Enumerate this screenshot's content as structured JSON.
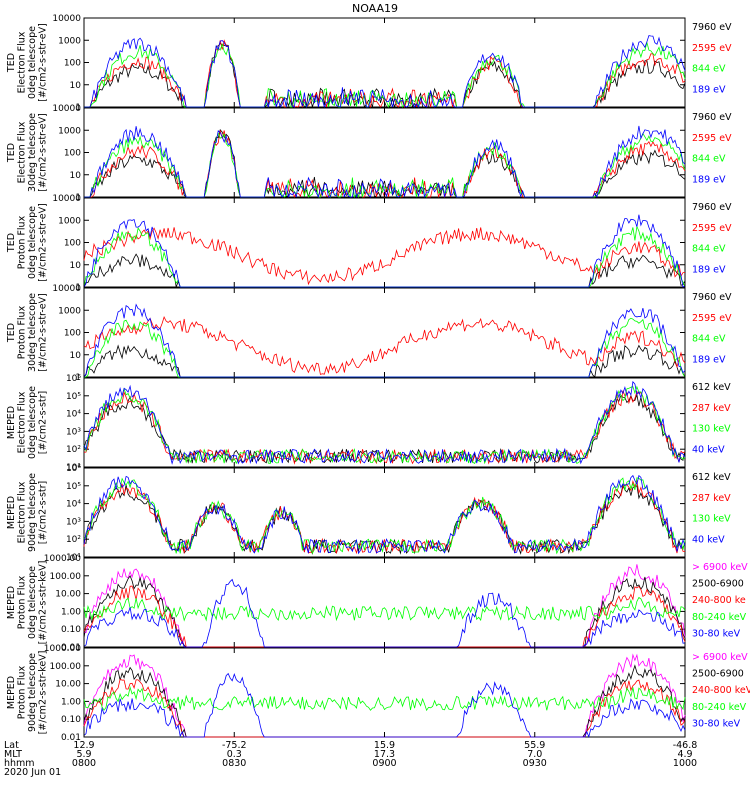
{
  "title": "NOAA19",
  "colors": {
    "black": "#000000",
    "red": "#ff0000",
    "green": "#00ff00",
    "blue": "#0000ff",
    "magenta": "#ff00ff",
    "frame": "#000000"
  },
  "chart_data": [
    {
      "type": "line",
      "ylabel": [
        "TED",
        "Electron Flux",
        "0deg telescope",
        "[#/cm2-s-str-eV]"
      ],
      "scale": "log",
      "yticks": [
        "10000",
        "1000",
        "100",
        "10",
        "1"
      ],
      "series": [
        {
          "name": "7960 eV",
          "color": "black"
        },
        {
          "name": "2595 eV",
          "color": "red"
        },
        {
          "name": "844 eV",
          "color": "green"
        },
        {
          "name": "189 eV",
          "color": "blue"
        }
      ]
    },
    {
      "type": "line",
      "ylabel": [
        "TED",
        "Electron Flux",
        "30deg telescope",
        "[#/cm2-s-str-eV]"
      ],
      "scale": "log",
      "yticks": [
        "10000",
        "1000",
        "100",
        "10",
        "1"
      ],
      "series": [
        {
          "name": "7960 eV",
          "color": "black"
        },
        {
          "name": "2595 eV",
          "color": "red"
        },
        {
          "name": "844 eV",
          "color": "green"
        },
        {
          "name": "189 eV",
          "color": "blue"
        }
      ]
    },
    {
      "type": "line",
      "ylabel": [
        "TED",
        "Proton Flux",
        "0deg telescope",
        "[#/cm2-s-str-eV]"
      ],
      "scale": "log",
      "yticks": [
        "10000",
        "1000",
        "100",
        "10",
        "1"
      ],
      "series": [
        {
          "name": "7960 eV",
          "color": "black"
        },
        {
          "name": "2595 eV",
          "color": "red"
        },
        {
          "name": "844 eV",
          "color": "green"
        },
        {
          "name": "189 eV",
          "color": "blue"
        }
      ]
    },
    {
      "type": "line",
      "ylabel": [
        "TED",
        "Proton Flux",
        "30deg telescope",
        "[#/cm2-s-str-eV]"
      ],
      "scale": "log",
      "yticks": [
        "10000",
        "1000",
        "100",
        "10",
        "1"
      ],
      "series": [
        {
          "name": "7960 eV",
          "color": "black"
        },
        {
          "name": "2595 eV",
          "color": "red"
        },
        {
          "name": "844 eV",
          "color": "green"
        },
        {
          "name": "189 eV",
          "color": "blue"
        }
      ]
    },
    {
      "type": "line",
      "ylabel": [
        "MEPED",
        "Electron Flux",
        "0deg telescope",
        "[#/cm2-s-str]"
      ],
      "scale": "log",
      "yticks": [
        "10⁶",
        "10⁵",
        "10⁴",
        "10³",
        "10²",
        "10¹"
      ],
      "series": [
        {
          "name": "612 keV",
          "color": "black"
        },
        {
          "name": "287 keV",
          "color": "red"
        },
        {
          "name": "130 keV",
          "color": "green"
        },
        {
          "name": "40 keV",
          "color": "blue"
        }
      ]
    },
    {
      "type": "line",
      "ylabel": [
        "MEPED",
        "Electron Flux",
        "90deg telescope",
        "[#/cm2-s-str]"
      ],
      "scale": "log",
      "yticks": [
        "10⁶",
        "10⁵",
        "10⁴",
        "10³",
        "10²",
        "10¹"
      ],
      "series": [
        {
          "name": "612 keV",
          "color": "black"
        },
        {
          "name": "287 keV",
          "color": "red"
        },
        {
          "name": "130 keV",
          "color": "green"
        },
        {
          "name": "40 keV",
          "color": "blue"
        }
      ]
    },
    {
      "type": "line",
      "ylabel": [
        "MEPED",
        "Proton Flux",
        "0deg telescope",
        "[#/cm2-s-str-keV]"
      ],
      "scale": "log",
      "yticks": [
        "1000.00",
        "100.00",
        "10.00",
        "1.00",
        "0.10",
        "0.01"
      ],
      "series": [
        {
          "name": "> 6900 keV",
          "color": "magenta"
        },
        {
          "name": "2500-6900",
          "color": "black"
        },
        {
          "name": "240-800 ke",
          "color": "red"
        },
        {
          "name": "80-240 keV",
          "color": "green"
        },
        {
          "name": "30-80 keV",
          "color": "blue"
        }
      ]
    },
    {
      "type": "line",
      "ylabel": [
        "MEPED",
        "Proton Flux",
        "90deg telescope",
        "[#/cm2-s-str-keV]"
      ],
      "scale": "log",
      "yticks": [
        "1000.00",
        "100.00",
        "10.00",
        "1.00",
        "0.10",
        "0.01"
      ],
      "series": [
        {
          "name": "> 6900 keV",
          "color": "magenta"
        },
        {
          "name": "2500-6900",
          "color": "black"
        },
        {
          "name": "240-800 keV",
          "color": "red"
        },
        {
          "name": "80-240 keV",
          "color": "green"
        },
        {
          "name": "30-80 keV",
          "color": "blue"
        }
      ]
    }
  ],
  "xaxis": {
    "row_labels": [
      "Lat",
      "MLT",
      "hhmm",
      "2020 Jun 01"
    ],
    "ticks": [
      {
        "lat": "12.9",
        "mlt": "5.9",
        "hhmm": "0800"
      },
      {
        "lat": "-75.2",
        "mlt": "0.3",
        "hhmm": "0830"
      },
      {
        "lat": "15.9",
        "mlt": "17.3",
        "hhmm": "0900"
      },
      {
        "lat": "55.9",
        "mlt": "7.0",
        "hhmm": "0930"
      },
      {
        "lat": "-46.8",
        "mlt": "4.9",
        "hhmm": "1000"
      }
    ]
  }
}
